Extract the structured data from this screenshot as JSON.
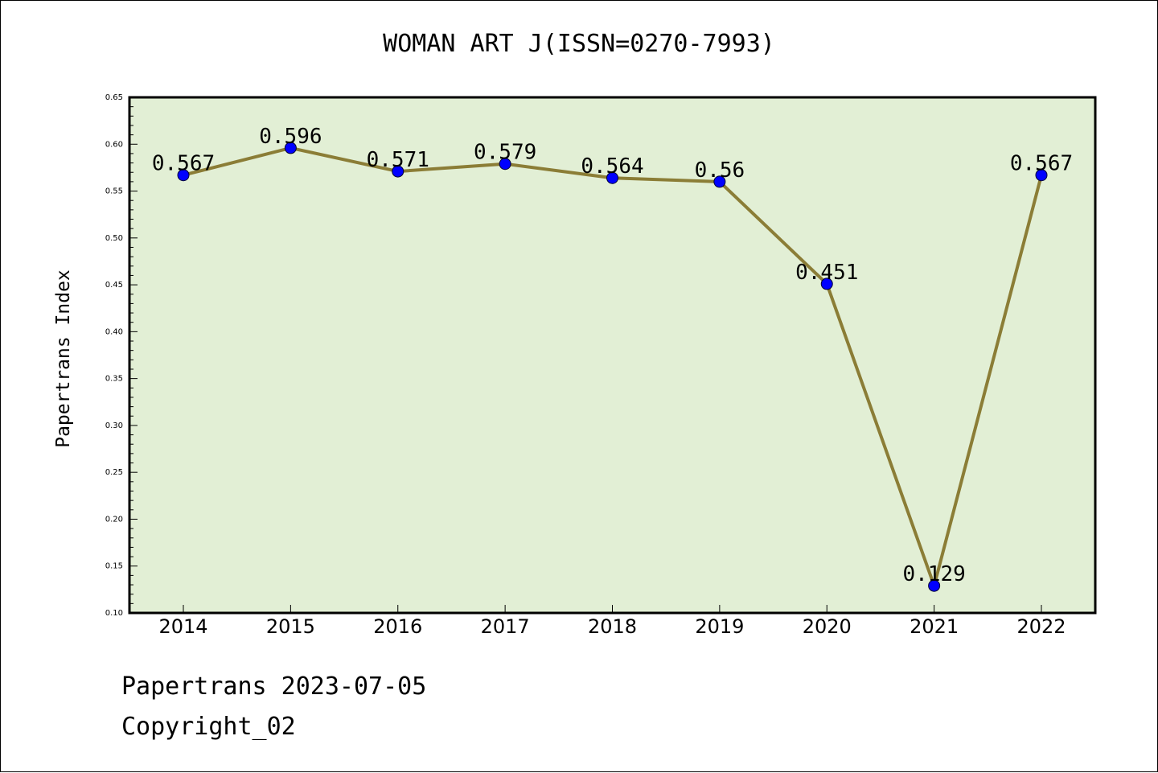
{
  "header": {
    "title": "WOMAN ART J(ISSN=0270-7993)"
  },
  "footer": {
    "line1": "Papertrans 2023-07-05",
    "line2": "Copyright_02"
  },
  "colors": {
    "plot_background": "#e2efd5",
    "line": "#8b7d36",
    "marker": "#0000ff",
    "axes": "#000000"
  },
  "chart_data": {
    "type": "line",
    "title": "WOMAN ART J(ISSN=0270-7993)",
    "xlabel": "",
    "ylabel": "Papertrans Index",
    "categories": [
      "2014",
      "2015",
      "2016",
      "2017",
      "2018",
      "2019",
      "2020",
      "2021",
      "2022"
    ],
    "values": [
      0.567,
      0.596,
      0.571,
      0.579,
      0.564,
      0.56,
      0.451,
      0.129,
      0.567
    ],
    "data_labels": [
      "0.567",
      "0.596",
      "0.571",
      "0.579",
      "0.564",
      "0.56",
      "0.451",
      "0.129",
      "0.567"
    ],
    "ylim": [
      0.1,
      0.65
    ],
    "yticks": [
      "0.10",
      "0.15",
      "0.20",
      "0.25",
      "0.30",
      "0.35",
      "0.40",
      "0.45",
      "0.50",
      "0.55",
      "0.60",
      "0.65"
    ],
    "grid": false,
    "legend": "none"
  }
}
